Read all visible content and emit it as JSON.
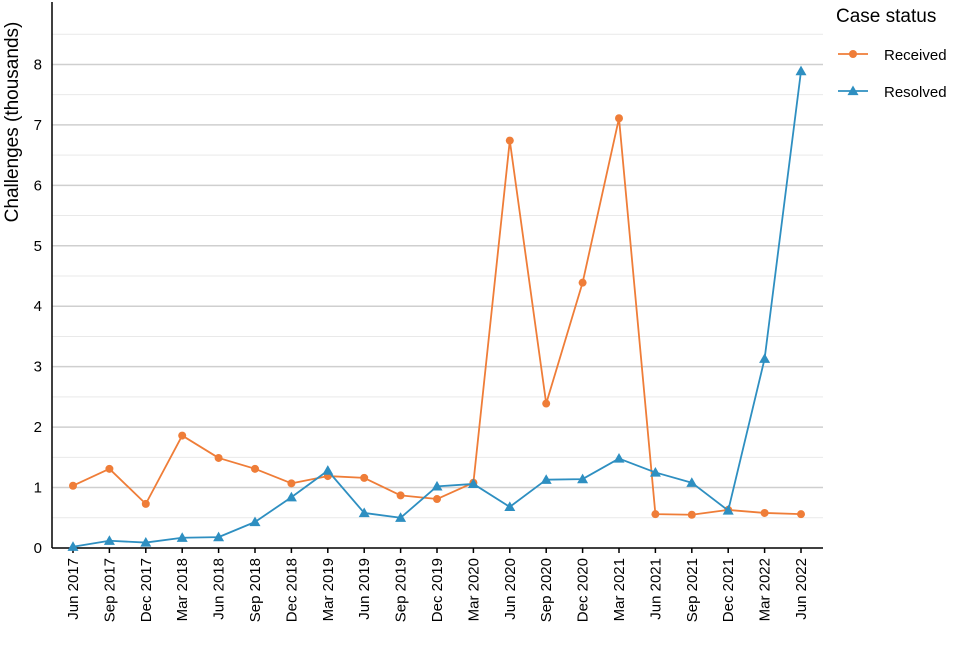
{
  "chart_data": {
    "type": "line",
    "title": "",
    "xlabel": "",
    "ylabel": "Challenges (thousands)",
    "ylim": [
      0,
      9
    ],
    "y_ticks": [
      "0",
      "1",
      "2",
      "3",
      "4",
      "5",
      "6",
      "7",
      "8"
    ],
    "grid": true,
    "legend_position": "top-right",
    "legend_title": "Case status",
    "categories": [
      "Jun 2017",
      "Sep 2017",
      "Dec 2017",
      "Mar 2018",
      "Jun 2018",
      "Sep 2018",
      "Dec 2018",
      "Mar 2019",
      "Jun 2019",
      "Sep 2019",
      "Dec 2019",
      "Mar 2020",
      "Jun 2020",
      "Sep 2020",
      "Dec 2020",
      "Mar 2021",
      "Jun 2021",
      "Sep 2021",
      "Dec 2021",
      "Mar 2022",
      "Jun 2022"
    ],
    "series": [
      {
        "name": "Received",
        "color": "#ef7d38",
        "marker": "circle",
        "values": [
          1.03,
          1.31,
          0.73,
          1.86,
          1.49,
          1.31,
          1.07,
          1.19,
          1.16,
          0.87,
          0.81,
          1.08,
          6.74,
          2.39,
          4.39,
          7.11,
          0.56,
          0.55,
          0.63,
          0.58,
          0.56
        ]
      },
      {
        "name": "Resolved",
        "color": "#2e8fc1",
        "marker": "triangle",
        "values": [
          0.02,
          0.12,
          0.09,
          0.17,
          0.18,
          0.43,
          0.84,
          1.28,
          0.58,
          0.5,
          1.02,
          1.06,
          0.68,
          1.13,
          1.14,
          1.48,
          1.25,
          1.08,
          0.62,
          3.13,
          7.89
        ]
      }
    ]
  }
}
